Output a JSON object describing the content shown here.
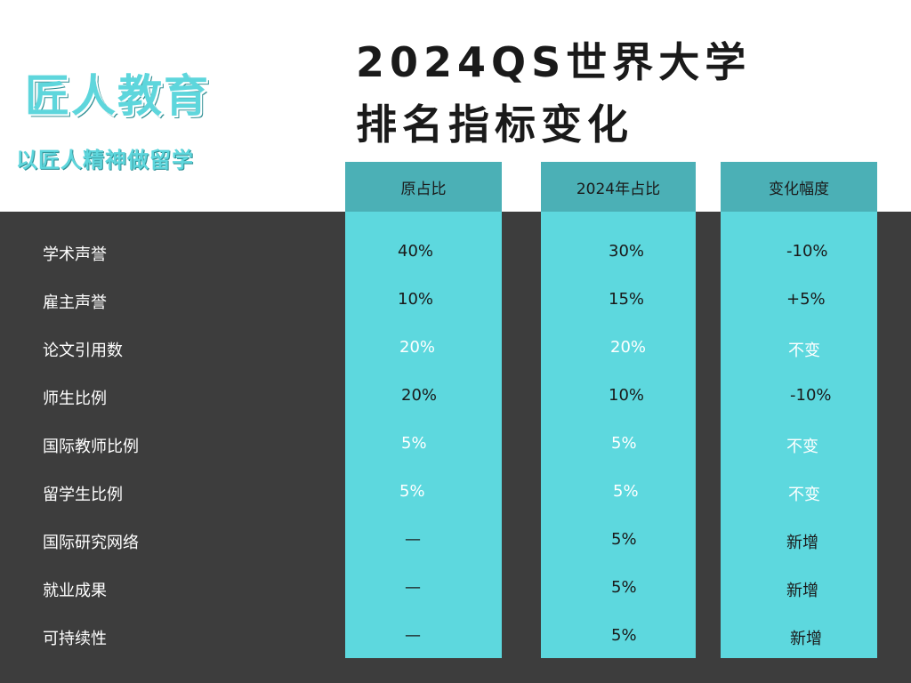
{
  "brand": {
    "name": "匠人教育",
    "slogan": "以匠人精神做留学"
  },
  "title": {
    "line1": "2024QS世界大学",
    "line2": "排名指标变化"
  },
  "columns": [
    "原占比",
    "2024年占比",
    "变化幅度"
  ],
  "rows": [
    {
      "label": "学术声誉",
      "old": "40%",
      "new": "30%",
      "change": "-10%"
    },
    {
      "label": "雇主声誉",
      "old": "10%",
      "new": "15%",
      "change": "+5%"
    },
    {
      "label": "论文引用数",
      "old": "20%",
      "new": "20%",
      "change": "不变"
    },
    {
      "label": "师生比例",
      "old": "20%",
      "new": "10%",
      "change": "-10%"
    },
    {
      "label": "国际教师比例",
      "old": "5%",
      "new": "5%",
      "change": "不变"
    },
    {
      "label": "留学生比例",
      "old": "5%",
      "new": "5%",
      "change": "不变"
    },
    {
      "label": "国际研究网络",
      "old": "—",
      "new": "5%",
      "change": "新增"
    },
    {
      "label": "就业成果",
      "old": "—",
      "new": "5%",
      "change": "新增"
    },
    {
      "label": "可持续性",
      "old": "—",
      "new": "5%",
      "change": "新增"
    }
  ],
  "colors": {
    "accent": "#5dd8de",
    "header": "#4bb0b6",
    "band": "#3d3d3d"
  }
}
